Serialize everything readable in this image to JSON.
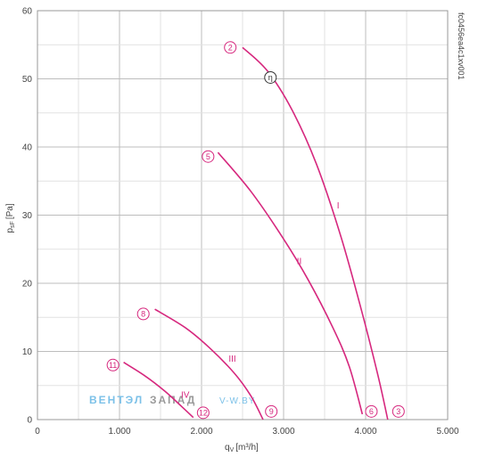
{
  "chart_data": {
    "type": "line",
    "ylabel": "p",
    "ylabel_sub": "sF",
    "ylabel_unit": "[Pa]",
    "xlabel": "q",
    "xlabel_sub": "V",
    "xlabel_unit": "[m³/h]",
    "xlim": [
      0,
      5000
    ],
    "ylim": [
      0,
      60
    ],
    "x_ticks": [
      0,
      1000,
      2000,
      3000,
      4000,
      5000
    ],
    "x_tick_labels": [
      "0",
      "1.000",
      "2.000",
      "3.000",
      "4.000",
      "5.000"
    ],
    "y_ticks": [
      0,
      10,
      20,
      30,
      40,
      50,
      60
    ],
    "y_tick_labels": [
      "0",
      "10",
      "20",
      "30",
      "40",
      "50",
      "60"
    ],
    "x_minor_step": 500,
    "y_minor_step": 5,
    "grid": true,
    "reference_code": "fc0456ea4c1xv001",
    "curve_color": "#d6287e",
    "series": [
      {
        "name": "I",
        "label_at": [
          3650,
          31
        ],
        "points": [
          [
            2500,
            54.6
          ],
          [
            2800,
            51.2
          ],
          [
            3100,
            45.5
          ],
          [
            3400,
            37.5
          ],
          [
            3700,
            26.8
          ],
          [
            3950,
            16.0
          ],
          [
            4150,
            6.5
          ],
          [
            4270,
            0.0
          ]
        ]
      },
      {
        "name": "II",
        "label_at": [
          3160,
          22.8
        ],
        "points": [
          [
            2200,
            39.2
          ],
          [
            2600,
            33.5
          ],
          [
            3000,
            26.5
          ],
          [
            3300,
            20.5
          ],
          [
            3600,
            13.5
          ],
          [
            3800,
            7.8
          ],
          [
            3960,
            0.8
          ]
        ]
      },
      {
        "name": "III",
        "label_at": [
          2330,
          8.5
        ],
        "points": [
          [
            1430,
            16.2
          ],
          [
            1800,
            13.5
          ],
          [
            2100,
            10.5
          ],
          [
            2400,
            6.8
          ],
          [
            2600,
            3.5
          ],
          [
            2750,
            0.0
          ]
        ]
      },
      {
        "name": "IV",
        "label_at": [
          1750,
          3.2
        ],
        "points": [
          [
            1050,
            8.4
          ],
          [
            1300,
            6.5
          ],
          [
            1550,
            4.2
          ],
          [
            1750,
            2.0
          ],
          [
            1900,
            0.3
          ]
        ]
      }
    ],
    "markers": [
      {
        "label": "2",
        "x": 2350,
        "y": 54.6,
        "type": "number"
      },
      {
        "label": "η",
        "x": 2840,
        "y": 50.2,
        "type": "eta"
      },
      {
        "label": "5",
        "x": 2080,
        "y": 38.6,
        "type": "number"
      },
      {
        "label": "8",
        "x": 1290,
        "y": 15.5,
        "type": "number"
      },
      {
        "label": "11",
        "x": 920,
        "y": 8.0,
        "type": "number"
      },
      {
        "label": "12",
        "x": 2020,
        "y": 1.0,
        "type": "number"
      },
      {
        "label": "9",
        "x": 2850,
        "y": 1.2,
        "type": "number"
      },
      {
        "label": "6",
        "x": 4070,
        "y": 1.2,
        "type": "number"
      },
      {
        "label": "3",
        "x": 4400,
        "y": 1.2,
        "type": "number"
      }
    ]
  },
  "watermark": {
    "part1": "ВЕНТЭЛ",
    "part2": "ЗАПАД",
    "part3": "V-W.BY",
    "color1": "#7cc1e8",
    "color2": "#9a9a9a",
    "color3": "#7cc1e8"
  }
}
